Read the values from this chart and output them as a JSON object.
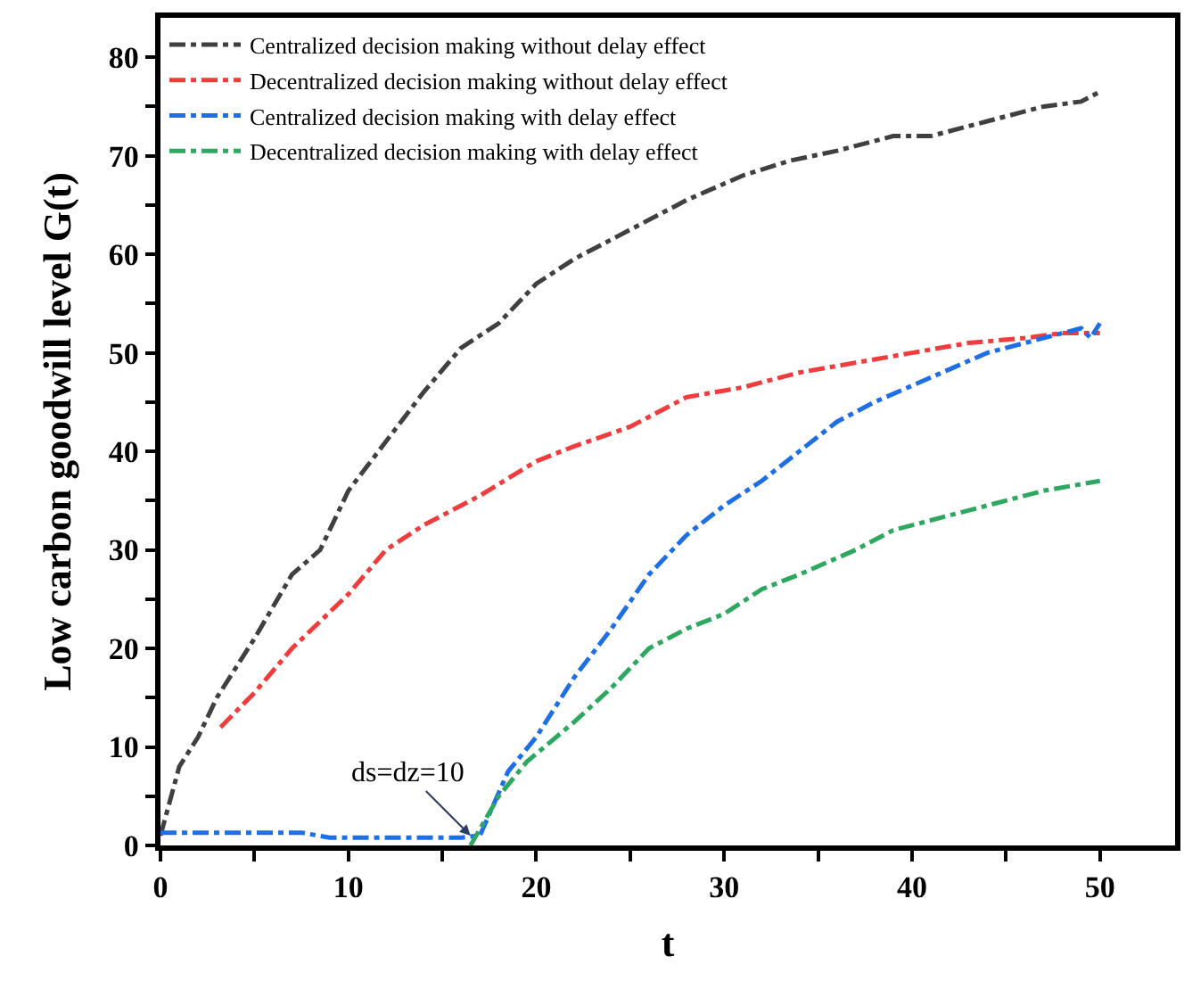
{
  "chart_data": {
    "type": "line",
    "xlabel": "t",
    "ylabel": "Low carbon goodwill level G(t)",
    "xlim": [
      0,
      54
    ],
    "ylim": [
      0,
      84
    ],
    "xticks": [
      0,
      {
        "value": 5,
        "label": null
      },
      10,
      {
        "value": 15,
        "label": null
      },
      20,
      {
        "value": 25,
        "label": null
      },
      30,
      {
        "value": 35,
        "label": null
      },
      40,
      {
        "value": 45,
        "label": null
      },
      50
    ],
    "yticks": [
      0,
      {
        "value": 5,
        "label": null
      },
      10,
      {
        "value": 15,
        "label": null
      },
      20,
      {
        "value": 25,
        "label": null
      },
      30,
      {
        "value": 35,
        "label": null
      },
      40,
      {
        "value": 45,
        "label": null
      },
      50,
      {
        "value": 55,
        "label": null
      },
      60,
      {
        "value": 65,
        "label": null
      },
      70,
      {
        "value": 75,
        "label": null
      },
      80
    ],
    "legend": "top left",
    "marker": "none",
    "line_style": "dashdot",
    "annotations": [
      {
        "text": "ds=dz=10",
        "x": 16.5,
        "y": 1
      }
    ],
    "series": [
      {
        "name": "Centralized decision making without delay effect",
        "color": "#404040",
        "x": [
          0,
          1,
          2,
          3,
          5,
          7,
          8.5,
          10,
          12,
          14,
          16,
          18,
          20,
          22,
          25,
          28,
          31,
          33.5,
          36,
          39,
          41,
          44,
          47,
          49,
          50
        ],
        "values": [
          1,
          8,
          11,
          15,
          21,
          27.5,
          30,
          36,
          41,
          46,
          50.5,
          53,
          57,
          59.5,
          62.5,
          65.5,
          68,
          69.5,
          70.5,
          72,
          72,
          73.5,
          75,
          75.5,
          76.5
        ]
      },
      {
        "name": "Decentralized decision making without delay effect",
        "color": "#f03c3c",
        "x": [
          3.2,
          5,
          7,
          10,
          12,
          14,
          17,
          20,
          22,
          25,
          28,
          31,
          34,
          37,
          40,
          43,
          46,
          48,
          50
        ],
        "values": [
          12,
          15.5,
          20,
          25.5,
          30,
          32.5,
          35.5,
          39,
          40.5,
          42.5,
          45.5,
          46.5,
          48,
          49,
          50,
          51,
          51.5,
          52,
          52
        ]
      },
      {
        "name": "Centralized decision making with delay effect",
        "color": "#1e6ee6",
        "x": [
          0,
          7.5,
          9,
          16,
          17,
          18.5,
          20,
          22,
          24,
          26,
          28,
          30,
          32,
          34,
          36,
          38,
          41,
          44,
          47,
          49,
          49.5,
          50
        ],
        "values": [
          1.3,
          1.3,
          0.8,
          0.8,
          1,
          7.5,
          11,
          17,
          22,
          27.5,
          31.5,
          34.5,
          37,
          40,
          43,
          45,
          47.5,
          50,
          51.5,
          52.5,
          51.5,
          53
        ]
      },
      {
        "name": "Decentralized decision making with delay effect",
        "color": "#2ea860",
        "x": [
          16.5,
          18,
          19.5,
          22,
          24,
          26,
          28,
          30,
          32,
          34,
          37,
          39,
          42,
          45,
          47,
          50
        ],
        "values": [
          0,
          5,
          8.5,
          12.5,
          16,
          20,
          22,
          23.5,
          26,
          27.5,
          30,
          32,
          33.5,
          35,
          36,
          37
        ]
      }
    ]
  }
}
